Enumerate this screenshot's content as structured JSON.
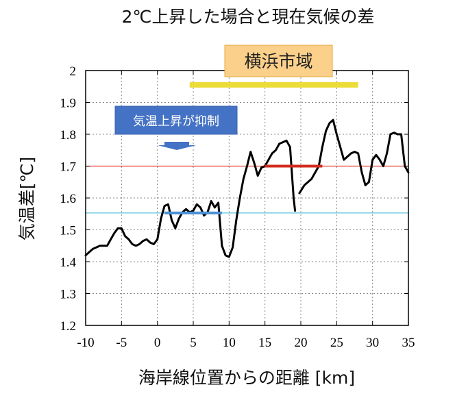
{
  "chart_data": {
    "type": "line",
    "title": "2℃上昇した場合と現在気候の差",
    "xlabel": "海岸線位置からの距離 [km]",
    "ylabel": "気温差[℃]",
    "xlim": [
      -10,
      35
    ],
    "ylim": [
      1.2,
      2.0
    ],
    "xticks": [
      -10,
      -5,
      0,
      5,
      10,
      15,
      20,
      25,
      30,
      35
    ],
    "yticks": [
      1.2,
      1.3,
      1.4,
      1.5,
      1.6,
      1.7,
      1.8,
      1.9,
      2.0
    ],
    "ytick_labels": [
      "1.2",
      "1.3",
      "1.4",
      "1.5",
      "1.6",
      "1.7",
      "1.8",
      "1.9",
      "2"
    ],
    "grid": true,
    "series": [
      {
        "color": "#000000",
        "segments": [
          {
            "x": [
              -10,
              -9,
              -8,
              -7,
              -6.5,
              -6,
              -5.5,
              -5,
              -4.5,
              -4,
              -3.5,
              -3,
              -2.5,
              -2,
              -1.5,
              -1,
              -0.5,
              0,
              0.5,
              1,
              1.5,
              2,
              2.5,
              3,
              3.5,
              4,
              4.5,
              5,
              5.5,
              6,
              6.5,
              7,
              7.5,
              8,
              8.5,
              9,
              9.5,
              10,
              10.5,
              11,
              11.5,
              12,
              12.5,
              13,
              13.5,
              14,
              14.5,
              15,
              15.5,
              16,
              16.5,
              17,
              17.5,
              18,
              18.5,
              19,
              19.2
            ],
            "y": [
              1.42,
              1.44,
              1.45,
              1.45,
              1.47,
              1.49,
              1.505,
              1.505,
              1.48,
              1.47,
              1.455,
              1.45,
              1.455,
              1.465,
              1.47,
              1.46,
              1.455,
              1.47,
              1.535,
              1.575,
              1.58,
              1.53,
              1.505,
              1.535,
              1.555,
              1.565,
              1.555,
              1.56,
              1.58,
              1.57,
              1.545,
              1.555,
              1.59,
              1.57,
              1.585,
              1.45,
              1.42,
              1.415,
              1.445,
              1.53,
              1.6,
              1.66,
              1.7,
              1.745,
              1.71,
              1.67,
              1.695,
              1.7,
              1.72,
              1.74,
              1.75,
              1.77,
              1.775,
              1.78,
              1.76,
              1.6,
              1.56
            ]
          },
          {
            "x": [
              19.8,
              20.5,
              21.5,
              22.5,
              23,
              23.5,
              24,
              24.5,
              25,
              25.5,
              26,
              26.5,
              27,
              27.5,
              28,
              28.5,
              29,
              29.5,
              30,
              30.5,
              31,
              31.5,
              32,
              32.5,
              33,
              33.5,
              34,
              34.5,
              35
            ],
            "y": [
              1.615,
              1.64,
              1.66,
              1.7,
              1.76,
              1.81,
              1.835,
              1.845,
              1.8,
              1.76,
              1.72,
              1.73,
              1.74,
              1.745,
              1.74,
              1.68,
              1.64,
              1.65,
              1.72,
              1.735,
              1.72,
              1.7,
              1.74,
              1.8,
              1.805,
              1.8,
              1.8,
              1.7,
              1.68
            ]
          }
        ]
      }
    ],
    "reference_lines": [
      {
        "y": 1.7,
        "color": "#e8413a"
      },
      {
        "y": 1.553,
        "color": "#5bc4d9"
      }
    ],
    "bold_segments": [
      {
        "x": [
          1,
          9
        ],
        "y": 1.553,
        "color": "#4a90d4"
      },
      {
        "x": [
          15,
          23
        ],
        "y": 1.7,
        "color": "#d22a1e"
      }
    ],
    "range_bar": {
      "x": [
        4.5,
        28
      ],
      "y": 1.955,
      "color": "#ecdc3a"
    },
    "annotations": [
      {
        "text": "横浜市域",
        "fill": "#fbd08a",
        "text_color": "#222222"
      },
      {
        "text": "気温上昇が抑制",
        "fill": "#4472c4",
        "text_color": "#ffffff"
      }
    ],
    "arrow_color": "#4472c4"
  }
}
